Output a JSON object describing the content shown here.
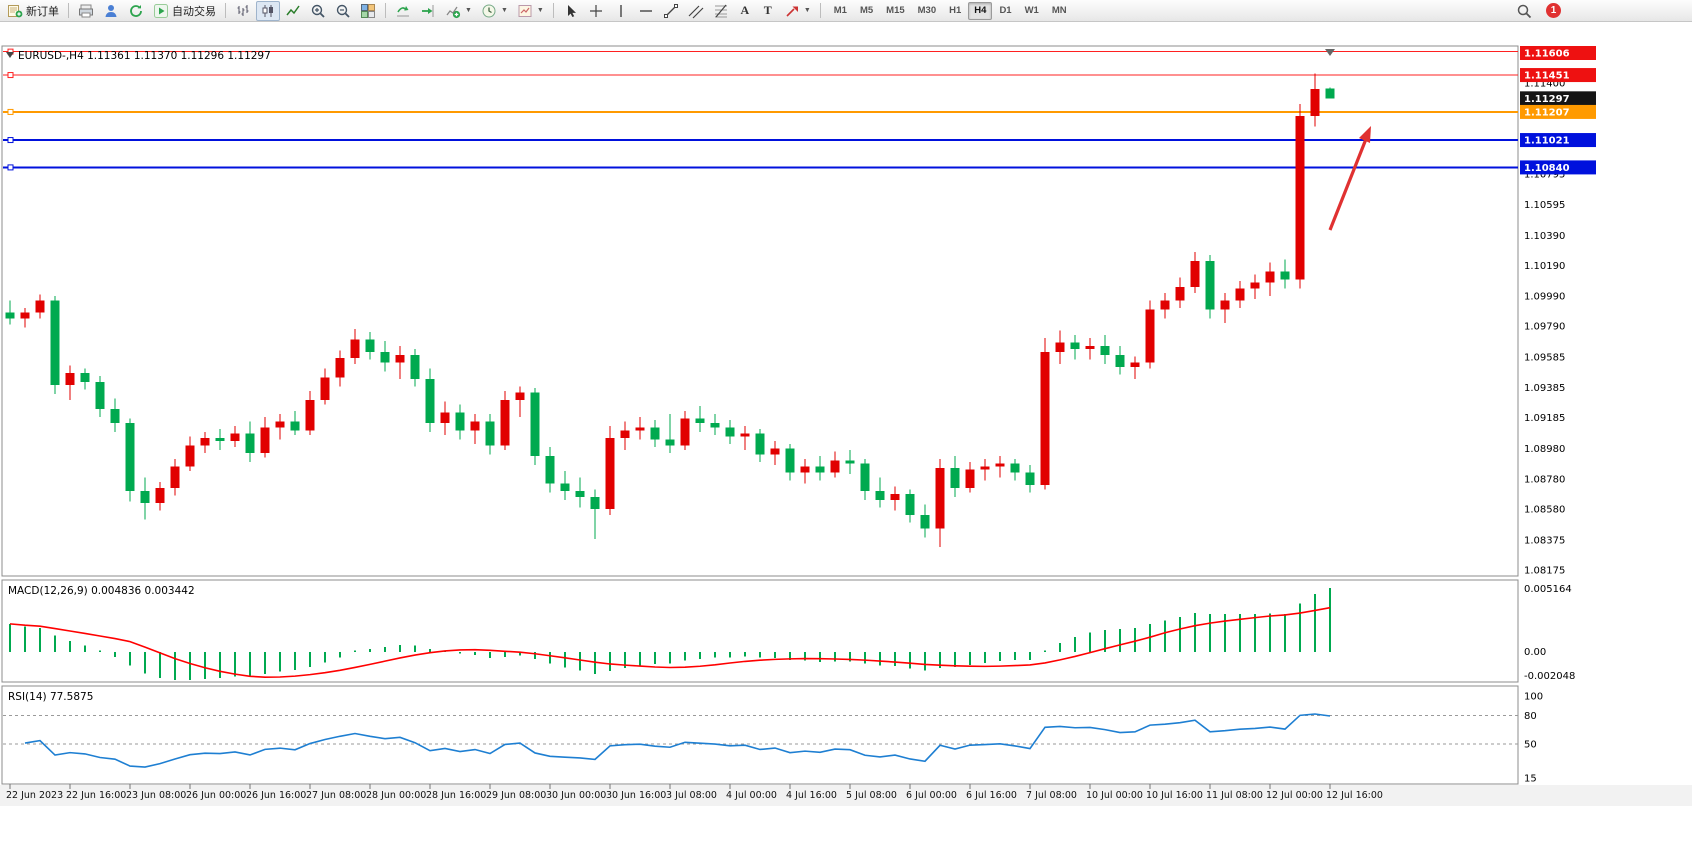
{
  "toolbar": {
    "new_order": "新订单",
    "auto_trading": "自动交易",
    "text_tool": "A",
    "label_tool": "T",
    "timeframes": [
      "M1",
      "M5",
      "M15",
      "M30",
      "H1",
      "H4",
      "D1",
      "W1",
      "MN"
    ],
    "active_timeframe": "H4",
    "notification_count": "1"
  },
  "chart_data": {
    "type": "candlestick",
    "symbol": "EURUSD-",
    "period": "H4",
    "title": "EURUSD-,H4 1.11361 1.11370 1.11296 1.11297",
    "current_bar": {
      "open": 1.11361,
      "high": 1.1137,
      "low": 1.11296,
      "close": 1.11297
    },
    "colors": {
      "bull": "#e10000",
      "bear": "#00a94f",
      "macd_hist": "#00a94f",
      "macd_signal": "#ff0000",
      "rsi_line": "#1e7fd2",
      "arrow": "#e03131"
    },
    "price_ticks": [
      "1.11400",
      "1.10795",
      "1.10595",
      "1.10390",
      "1.10190",
      "1.09990",
      "1.09790",
      "1.09585",
      "1.09385",
      "1.09185",
      "1.08980",
      "1.08780",
      "1.08580",
      "1.08375",
      "1.08175"
    ],
    "price_tags": [
      {
        "text": "1.11606",
        "bg": "#ee1111"
      },
      {
        "text": "1.11451",
        "bg": "#ee1111"
      },
      {
        "text": "1.11297",
        "bg": "#151515"
      },
      {
        "text": "1.11207",
        "bg": "#ff9a00"
      },
      {
        "text": "1.11021",
        "bg": "#0011dd"
      },
      {
        "text": "1.10840",
        "bg": "#0011dd"
      }
    ],
    "hlines": [
      {
        "price": 1.11606,
        "color": "#ff2020",
        "width": 1.2
      },
      {
        "price": 1.11451,
        "color": "#ff2020",
        "width": 1.2
      },
      {
        "price": 1.11207,
        "color": "#ff9a00",
        "width": 2
      },
      {
        "price": 1.11021,
        "color": "#0011dd",
        "width": 2
      },
      {
        "price": 1.1084,
        "color": "#0011dd",
        "width": 2
      }
    ],
    "candles": [
      [
        1.0988,
        1.0996,
        1.098,
        1.0984
      ],
      [
        1.0984,
        1.0991,
        1.0978,
        1.0988
      ],
      [
        1.0988,
        1.1,
        1.0984,
        1.0996
      ],
      [
        1.0996,
        1.0999,
        1.0934,
        1.094
      ],
      [
        1.094,
        1.0953,
        1.093,
        1.0948
      ],
      [
        1.0948,
        1.0951,
        1.0937,
        1.0942
      ],
      [
        1.0942,
        1.0946,
        1.0919,
        1.0924
      ],
      [
        1.0924,
        1.0931,
        1.0909,
        1.0915
      ],
      [
        1.0915,
        1.0918,
        1.0863,
        1.087
      ],
      [
        1.087,
        1.0879,
        1.0851,
        1.0862
      ],
      [
        1.0862,
        1.0876,
        1.0857,
        1.0872
      ],
      [
        1.0872,
        1.0891,
        1.0867,
        1.0886
      ],
      [
        1.0886,
        1.0906,
        1.0883,
        1.09
      ],
      [
        1.09,
        1.0909,
        1.0895,
        1.0905
      ],
      [
        1.0905,
        1.0911,
        1.0897,
        1.0903
      ],
      [
        1.0903,
        1.0913,
        1.0899,
        1.0908
      ],
      [
        1.0908,
        1.0916,
        1.0889,
        1.0895
      ],
      [
        1.0895,
        1.0919,
        1.0892,
        1.0912
      ],
      [
        1.0912,
        1.0921,
        1.0904,
        1.0916
      ],
      [
        1.0916,
        1.0923,
        1.0907,
        1.091
      ],
      [
        1.091,
        1.0936,
        1.0907,
        1.093
      ],
      [
        1.093,
        1.0951,
        1.0927,
        1.0945
      ],
      [
        1.0945,
        1.0963,
        1.0939,
        1.0958
      ],
      [
        1.0958,
        1.0977,
        1.0954,
        1.097
      ],
      [
        1.097,
        1.0975,
        1.0957,
        1.0962
      ],
      [
        1.0962,
        1.0969,
        1.0949,
        1.0955
      ],
      [
        1.0955,
        1.0966,
        1.0944,
        1.096
      ],
      [
        1.096,
        1.0964,
        1.0939,
        1.0944
      ],
      [
        1.0944,
        1.0951,
        1.0909,
        1.0915
      ],
      [
        1.0915,
        1.0929,
        1.0907,
        1.0922
      ],
      [
        1.0922,
        1.0927,
        1.0904,
        1.091
      ],
      [
        1.091,
        1.0921,
        1.0901,
        1.0916
      ],
      [
        1.0916,
        1.0921,
        1.0894,
        1.09
      ],
      [
        1.09,
        1.0936,
        1.0897,
        1.093
      ],
      [
        1.093,
        1.0939,
        1.0919,
        1.0935
      ],
      [
        1.0935,
        1.0938,
        1.0887,
        1.0893
      ],
      [
        1.0893,
        1.0899,
        1.0869,
        1.0875
      ],
      [
        1.0875,
        1.0883,
        1.0864,
        1.087
      ],
      [
        1.087,
        1.0879,
        1.0859,
        1.0866
      ],
      [
        1.0866,
        1.0871,
        1.0838,
        1.0858
      ],
      [
        1.0858,
        1.0913,
        1.0854,
        1.0905
      ],
      [
        1.0905,
        1.0916,
        1.0897,
        1.091
      ],
      [
        1.091,
        1.0919,
        1.0904,
        1.0912
      ],
      [
        1.0912,
        1.0917,
        1.0899,
        1.0904
      ],
      [
        1.0904,
        1.0921,
        1.0895,
        1.09
      ],
      [
        1.09,
        1.0923,
        1.0897,
        1.0918
      ],
      [
        1.0918,
        1.0926,
        1.0909,
        1.0915
      ],
      [
        1.0915,
        1.0921,
        1.0907,
        1.0912
      ],
      [
        1.0912,
        1.0917,
        1.0901,
        1.0906
      ],
      [
        1.0906,
        1.0913,
        1.0897,
        1.0908
      ],
      [
        1.0908,
        1.0911,
        1.0889,
        1.0894
      ],
      [
        1.0894,
        1.0903,
        1.0887,
        1.0898
      ],
      [
        1.0898,
        1.0901,
        1.0877,
        1.0882
      ],
      [
        1.0882,
        1.0891,
        1.0875,
        1.0886
      ],
      [
        1.0886,
        1.0893,
        1.0877,
        1.0882
      ],
      [
        1.0882,
        1.0896,
        1.0879,
        1.089
      ],
      [
        1.089,
        1.0897,
        1.0881,
        1.0888
      ],
      [
        1.0888,
        1.0891,
        1.0864,
        1.087
      ],
      [
        1.087,
        1.0879,
        1.0859,
        1.0864
      ],
      [
        1.0864,
        1.0873,
        1.0857,
        1.0868
      ],
      [
        1.0868,
        1.0871,
        1.0849,
        1.0854
      ],
      [
        1.0854,
        1.0861,
        1.0839,
        1.0845
      ],
      [
        1.0845,
        1.0891,
        1.0833,
        1.0885
      ],
      [
        1.0885,
        1.0893,
        1.0866,
        1.0872
      ],
      [
        1.0872,
        1.0889,
        1.0869,
        1.0884
      ],
      [
        1.0884,
        1.0891,
        1.0877,
        1.0886
      ],
      [
        1.0886,
        1.0893,
        1.0879,
        1.0888
      ],
      [
        1.0888,
        1.0891,
        1.0877,
        1.0882
      ],
      [
        1.0882,
        1.0887,
        1.0869,
        1.0874
      ],
      [
        1.0874,
        1.0971,
        1.0871,
        1.0962
      ],
      [
        1.0962,
        1.0976,
        1.0954,
        1.0968
      ],
      [
        1.0968,
        1.0973,
        1.0957,
        1.0964
      ],
      [
        1.0964,
        1.0971,
        1.0957,
        1.0966
      ],
      [
        1.0966,
        1.0973,
        1.0954,
        1.096
      ],
      [
        1.096,
        1.0966,
        1.0947,
        1.0952
      ],
      [
        1.0952,
        1.0959,
        1.0944,
        1.0955
      ],
      [
        1.0955,
        1.0996,
        1.0951,
        1.099
      ],
      [
        1.099,
        1.1001,
        1.0984,
        1.0996
      ],
      [
        1.0996,
        1.1011,
        1.0991,
        1.1005
      ],
      [
        1.1005,
        1.1028,
        1.1001,
        1.1022
      ],
      [
        1.1022,
        1.1026,
        1.0984,
        1.099
      ],
      [
        1.099,
        1.1001,
        1.0981,
        1.0996
      ],
      [
        1.0996,
        1.1009,
        1.0991,
        1.1004
      ],
      [
        1.1004,
        1.1013,
        1.0997,
        1.1008
      ],
      [
        1.1008,
        1.1021,
        1.0999,
        1.1015
      ],
      [
        1.1015,
        1.1023,
        1.1004,
        1.101
      ],
      [
        1.101,
        1.1126,
        1.1004,
        1.1118
      ],
      [
        1.1118,
        1.1146,
        1.1111,
        1.1136
      ],
      [
        1.11361,
        1.1137,
        1.11296,
        1.11297
      ]
    ],
    "time_labels": [
      {
        "t": "22 Jun 2023",
        "bar": 0
      },
      {
        "t": "22 Jun 16:00",
        "bar": 4
      },
      {
        "t": "23 Jun 08:00",
        "bar": 8
      },
      {
        "t": "26 Jun 00:00",
        "bar": 12
      },
      {
        "t": "26 Jun 16:00",
        "bar": 16
      },
      {
        "t": "27 Jun 08:00",
        "bar": 20
      },
      {
        "t": "28 Jun 00:00",
        "bar": 24
      },
      {
        "t": "28 Jun 16:00",
        "bar": 28
      },
      {
        "t": "29 Jun 08:00",
        "bar": 32
      },
      {
        "t": "30 Jun 00:00",
        "bar": 36
      },
      {
        "t": "30 Jun 16:00",
        "bar": 40
      },
      {
        "t": "3 Jul 08:00",
        "bar": 44
      },
      {
        "t": "4 Jul 00:00",
        "bar": 48
      },
      {
        "t": "4 Jul 16:00",
        "bar": 52
      },
      {
        "t": "5 Jul 08:00",
        "bar": 56
      },
      {
        "t": "6 Jul 00:00",
        "bar": 60
      },
      {
        "t": "6 Jul 16:00",
        "bar": 64
      },
      {
        "t": "7 Jul 08:00",
        "bar": 68
      },
      {
        "t": "10 Jul 00:00",
        "bar": 72
      },
      {
        "t": "10 Jul 16:00",
        "bar": 76
      },
      {
        "t": "11 Jul 08:00",
        "bar": 80
      },
      {
        "t": "12 Jul 00:00",
        "bar": 84
      },
      {
        "t": "12 Jul 16:00",
        "bar": 88
      }
    ],
    "macd": {
      "label": "MACD(12,26,9) 0.004836 0.003442",
      "main_value": "0.004836",
      "signal_value": "0.003442",
      "axis": [
        "0.005164",
        "0.00",
        "-0.002048"
      ]
    },
    "rsi": {
      "label": "RSI(14) 77.5875",
      "value": "77.5875",
      "axis": [
        "100",
        "80",
        "50",
        "15"
      ],
      "levels": [
        80,
        50
      ]
    },
    "annotations": [
      {
        "type": "arrow",
        "direction": "up",
        "color": "#e03131"
      }
    ]
  }
}
